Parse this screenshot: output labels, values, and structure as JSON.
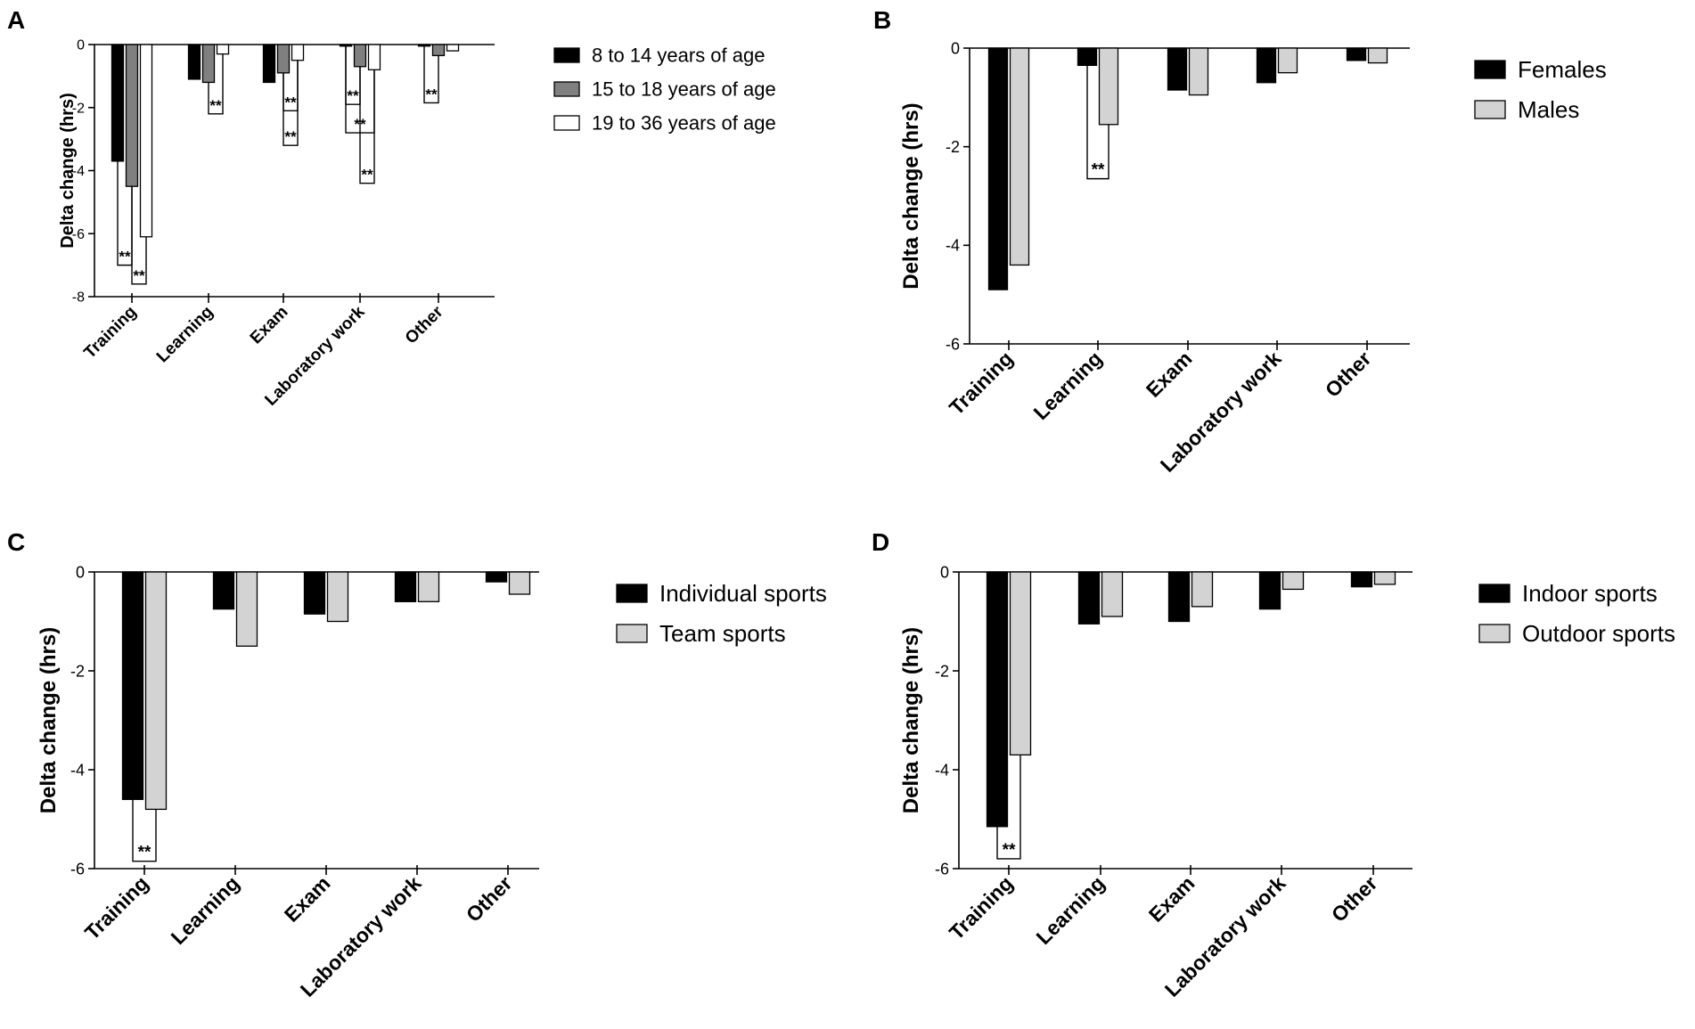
{
  "figure": {
    "panels_order": [
      "A",
      "B",
      "C",
      "D"
    ]
  },
  "chart_data": [
    {
      "panel": "A",
      "type": "bar",
      "title": "",
      "xlabel": "",
      "ylabel": "Delta change (hrs)",
      "ylim": [
        -8,
        0
      ],
      "yticks": [
        0,
        -2,
        -4,
        -6,
        -8
      ],
      "categories": [
        "Training",
        "Learning",
        "Exam",
        "Laboratory work",
        "Other"
      ],
      "legend_position": "right",
      "series": [
        {
          "name": "8 to 14 years of age",
          "color": "#000000",
          "values": [
            -3.7,
            -1.1,
            -1.2,
            -0.05,
            -0.05
          ]
        },
        {
          "name": "15 to 18 years of age",
          "color": "#808080",
          "values": [
            -4.5,
            -1.2,
            -0.9,
            -0.7,
            -0.35
          ]
        },
        {
          "name": "19 to 36 years of age",
          "color": "#ffffff",
          "values": [
            -6.1,
            -0.3,
            -0.5,
            -0.8,
            -0.2
          ]
        }
      ],
      "significance": [
        {
          "label": "**",
          "category": 0,
          "from_series": 0,
          "to_series": 1,
          "level": -7.0
        },
        {
          "label": "**",
          "category": 0,
          "from_series": 1,
          "to_series": 2,
          "level": -7.6
        },
        {
          "label": "**",
          "category": 1,
          "from_series": 1,
          "to_series": 2,
          "level": -2.2
        },
        {
          "label": "**",
          "category": 2,
          "from_series": 1,
          "to_series": 2,
          "level": -2.1
        },
        {
          "label": "**",
          "category": 2,
          "from_series": 1,
          "to_series": 2,
          "level": -3.2
        },
        {
          "label": "**",
          "category": 3,
          "from_series": 0,
          "to_series": 1,
          "level": -1.9
        },
        {
          "label": "**",
          "category": 3,
          "from_series": 0,
          "to_series": 2,
          "level": -2.8
        },
        {
          "label": "**",
          "category": 3,
          "from_series": 1,
          "to_series": 2,
          "level": -4.4
        },
        {
          "label": "**",
          "category": 4,
          "from_series": 0,
          "to_series": 1,
          "level": -1.85
        }
      ]
    },
    {
      "panel": "B",
      "type": "bar",
      "title": "",
      "xlabel": "",
      "ylabel": "Delta change (hrs)",
      "ylim": [
        -6,
        0
      ],
      "yticks": [
        0,
        -2,
        -4,
        -6
      ],
      "categories": [
        "Training",
        "Learning",
        "Exam",
        "Laboratory work",
        "Other"
      ],
      "legend_position": "right",
      "series": [
        {
          "name": "Females",
          "color": "#000000",
          "values": [
            -4.9,
            -0.35,
            -0.85,
            -0.7,
            -0.25
          ]
        },
        {
          "name": "Males",
          "color": "#d3d3d3",
          "values": [
            -4.4,
            -1.55,
            -0.95,
            -0.5,
            -0.3
          ]
        }
      ],
      "significance": [
        {
          "label": "**",
          "category": 1,
          "from_series": 0,
          "to_series": 1,
          "level": -2.65
        }
      ]
    },
    {
      "panel": "C",
      "type": "bar",
      "title": "",
      "xlabel": "",
      "ylabel": "Delta change (hrs)",
      "ylim": [
        -6,
        0
      ],
      "yticks": [
        0,
        -2,
        -4,
        -6
      ],
      "categories": [
        "Training",
        "Learning",
        "Exam",
        "Laboratory work",
        "Other"
      ],
      "legend_position": "right",
      "series": [
        {
          "name": "Individual sports",
          "color": "#000000",
          "values": [
            -4.6,
            -0.75,
            -0.85,
            -0.6,
            -0.2
          ]
        },
        {
          "name": "Team sports",
          "color": "#d3d3d3",
          "values": [
            -4.8,
            -1.5,
            -1.0,
            -0.6,
            -0.45
          ]
        }
      ],
      "significance": [
        {
          "label": "**",
          "category": 0,
          "from_series": 0,
          "to_series": 1,
          "level": -5.85
        }
      ]
    },
    {
      "panel": "D",
      "type": "bar",
      "title": "",
      "xlabel": "",
      "ylabel": "Delta change (hrs)",
      "ylim": [
        -6,
        0
      ],
      "yticks": [
        0,
        -2,
        -4,
        -6
      ],
      "categories": [
        "Training",
        "Learning",
        "Exam",
        "Laboratory work",
        "Other"
      ],
      "legend_position": "right",
      "series": [
        {
          "name": "Indoor sports",
          "color": "#000000",
          "values": [
            -5.15,
            -1.05,
            -1.0,
            -0.75,
            -0.3
          ]
        },
        {
          "name": "Outdoor sports",
          "color": "#d3d3d3",
          "values": [
            -3.7,
            -0.9,
            -0.7,
            -0.35,
            -0.25
          ]
        }
      ],
      "significance": [
        {
          "label": "**",
          "category": 0,
          "from_series": 0,
          "to_series": 1,
          "level": -5.8
        }
      ]
    }
  ]
}
